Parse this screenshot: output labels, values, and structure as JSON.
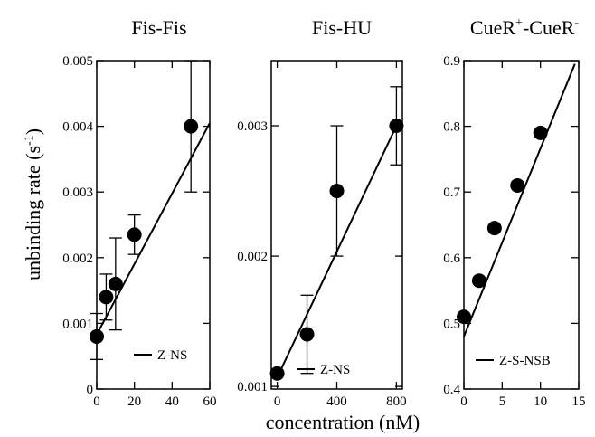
{
  "ylabel_main": "unbinding rate (s",
  "ylabel_sup": "-1",
  "ylabel_end": ")",
  "xlabel": "concentration (nM)",
  "chart_data": [
    {
      "type": "scatter",
      "title": "Fis-Fis",
      "title_sup": "",
      "title_sup2": "",
      "xlim": [
        0,
        60
      ],
      "ylim": [
        0,
        0.005
      ],
      "xticks": [
        0,
        20,
        40,
        60
      ],
      "xtick_labels": [
        "0",
        "20",
        "40",
        "60"
      ],
      "yticks": [
        0,
        0.001,
        0.002,
        0.003,
        0.004,
        0.005
      ],
      "ytick_labels": [
        "0",
        "0.001",
        "0.002",
        "0.003",
        "0.004",
        "0.005"
      ],
      "points": [
        {
          "x": 0,
          "y": 0.0008,
          "err": 0.00035
        },
        {
          "x": 5,
          "y": 0.0014,
          "err": 0.00035
        },
        {
          "x": 10,
          "y": 0.0016,
          "err": 0.0007
        },
        {
          "x": 20,
          "y": 0.00235,
          "err": 0.0003
        },
        {
          "x": 50,
          "y": 0.004,
          "err": 0.001
        }
      ],
      "fit": {
        "x": [
          0,
          60
        ],
        "y": [
          0.00083,
          0.00405
        ]
      },
      "legend": "Z-NS"
    },
    {
      "type": "scatter",
      "title": "Fis-HU",
      "title_sup": "",
      "title_sup2": "",
      "xlim": [
        -40,
        840
      ],
      "ylim": [
        0.00098,
        0.0035
      ],
      "xticks": [
        0,
        400,
        800
      ],
      "xtick_labels": [
        "0",
        "400",
        "800"
      ],
      "yticks": [
        0.001,
        0.002,
        0.003
      ],
      "ytick_labels": [
        "0.001",
        "0.002",
        "0.003"
      ],
      "points": [
        {
          "x": 0,
          "y": 0.0011,
          "err": 0
        },
        {
          "x": 200,
          "y": 0.0014,
          "err": 0.0003
        },
        {
          "x": 400,
          "y": 0.0025,
          "err": 0.0005
        },
        {
          "x": 800,
          "y": 0.003,
          "err": 0.0003
        }
      ],
      "fit": {
        "x": [
          0,
          800
        ],
        "y": [
          0.00107,
          0.003
        ]
      },
      "legend": "Z-NS"
    },
    {
      "type": "scatter",
      "title": "CueR",
      "title_sup": "+",
      "title_mid": "-CueR",
      "title_sup2": "-",
      "xlim": [
        0,
        15
      ],
      "ylim": [
        0.4,
        0.9
      ],
      "xticks": [
        0,
        5,
        10,
        15
      ],
      "xtick_labels": [
        "0",
        "5",
        "10",
        "15"
      ],
      "yticks": [
        0.4,
        0.5,
        0.6,
        0.7,
        0.8,
        0.9
      ],
      "ytick_labels": [
        "0.4",
        "0.5",
        "0.6",
        "0.7",
        "0.8",
        "0.9"
      ],
      "points": [
        {
          "x": 0,
          "y": 0.51,
          "err": 0
        },
        {
          "x": 2,
          "y": 0.565,
          "err": 0
        },
        {
          "x": 4,
          "y": 0.645,
          "err": 0
        },
        {
          "x": 7,
          "y": 0.71,
          "err": 0
        },
        {
          "x": 10,
          "y": 0.79,
          "err": 0
        }
      ],
      "fit": {
        "x": [
          0,
          14.5
        ],
        "y": [
          0.48,
          0.895
        ]
      },
      "legend": "Z-S-NSB"
    }
  ]
}
